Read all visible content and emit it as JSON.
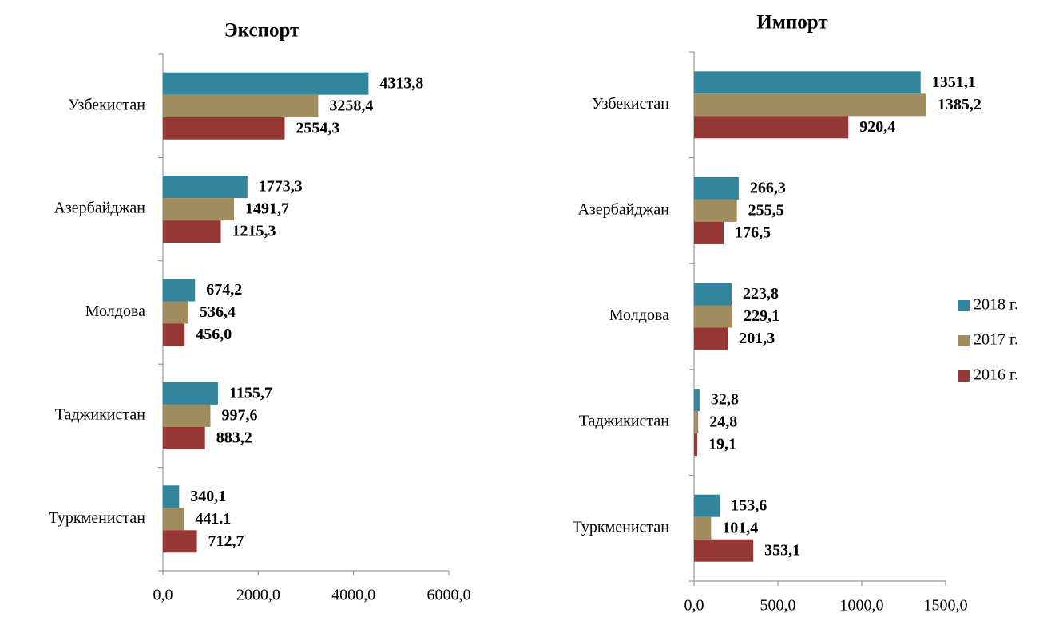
{
  "chart_data": [
    {
      "type": "hbar",
      "title": "Экспорт",
      "categories": [
        "Узбекистан",
        "Азербайджан",
        "Молдова",
        "Таджикистан",
        "Туркменистан"
      ],
      "series": [
        {
          "color": "#31859c",
          "values": [
            4313.8,
            1773.3,
            674.2,
            1155.7,
            340.1
          ],
          "value_labels": [
            "4313,8",
            "1773,3",
            "674,2",
            "1155,7",
            "340,1"
          ]
        },
        {
          "color": "#a08c5c",
          "values": [
            3258.4,
            1491.7,
            536.4,
            997.6,
            441.1
          ],
          "value_labels": [
            "3258,4",
            "1491,7",
            "536,4",
            "997,6",
            "441.1"
          ]
        },
        {
          "color": "#953735",
          "values": [
            2554.3,
            1215.3,
            456.0,
            883.2,
            712.7
          ],
          "value_labels": [
            "2554,3",
            "1215,3",
            "456,0",
            "883,2",
            "712,7"
          ]
        }
      ],
      "xlim": [
        0,
        6000
      ],
      "xticks": [
        {
          "value": 0,
          "label": "0,0"
        },
        {
          "value": 2000,
          "label": "2000,0"
        },
        {
          "value": 4000,
          "label": "4000,0"
        },
        {
          "value": 6000,
          "label": "6000,0"
        }
      ]
    },
    {
      "type": "hbar",
      "title": "Импорт",
      "categories": [
        "Узбекистан",
        "Азербайджан",
        "Молдова",
        "Таджикистан",
        "Туркменистан"
      ],
      "series": [
        {
          "name": "2018 г.",
          "color": "#31859c",
          "values": [
            1351.1,
            266.3,
            223.8,
            32.8,
            153.6
          ],
          "value_labels": [
            "1351,1",
            "266,3",
            "223,8",
            "32,8",
            "153,6"
          ]
        },
        {
          "name": "2017 г.",
          "color": "#a08c5c",
          "values": [
            1385.2,
            255.5,
            229.1,
            24.8,
            101.4
          ],
          "value_labels": [
            "1385,2",
            "255,5",
            "229,1",
            "24,8",
            "101,4"
          ]
        },
        {
          "name": "2016 г.",
          "color": "#953735",
          "values": [
            920.4,
            176.5,
            201.3,
            19.1,
            353.1
          ],
          "value_labels": [
            "920,4",
            "176,5",
            "201,3",
            "19,1",
            "353,1"
          ]
        }
      ],
      "xlim": [
        0,
        1500
      ],
      "xticks": [
        {
          "value": 0,
          "label": "0,0"
        },
        {
          "value": 500,
          "label": "500,0"
        },
        {
          "value": 1000,
          "label": "1000,0"
        },
        {
          "value": 1500,
          "label": "1500,0"
        }
      ],
      "legend": "right"
    }
  ]
}
